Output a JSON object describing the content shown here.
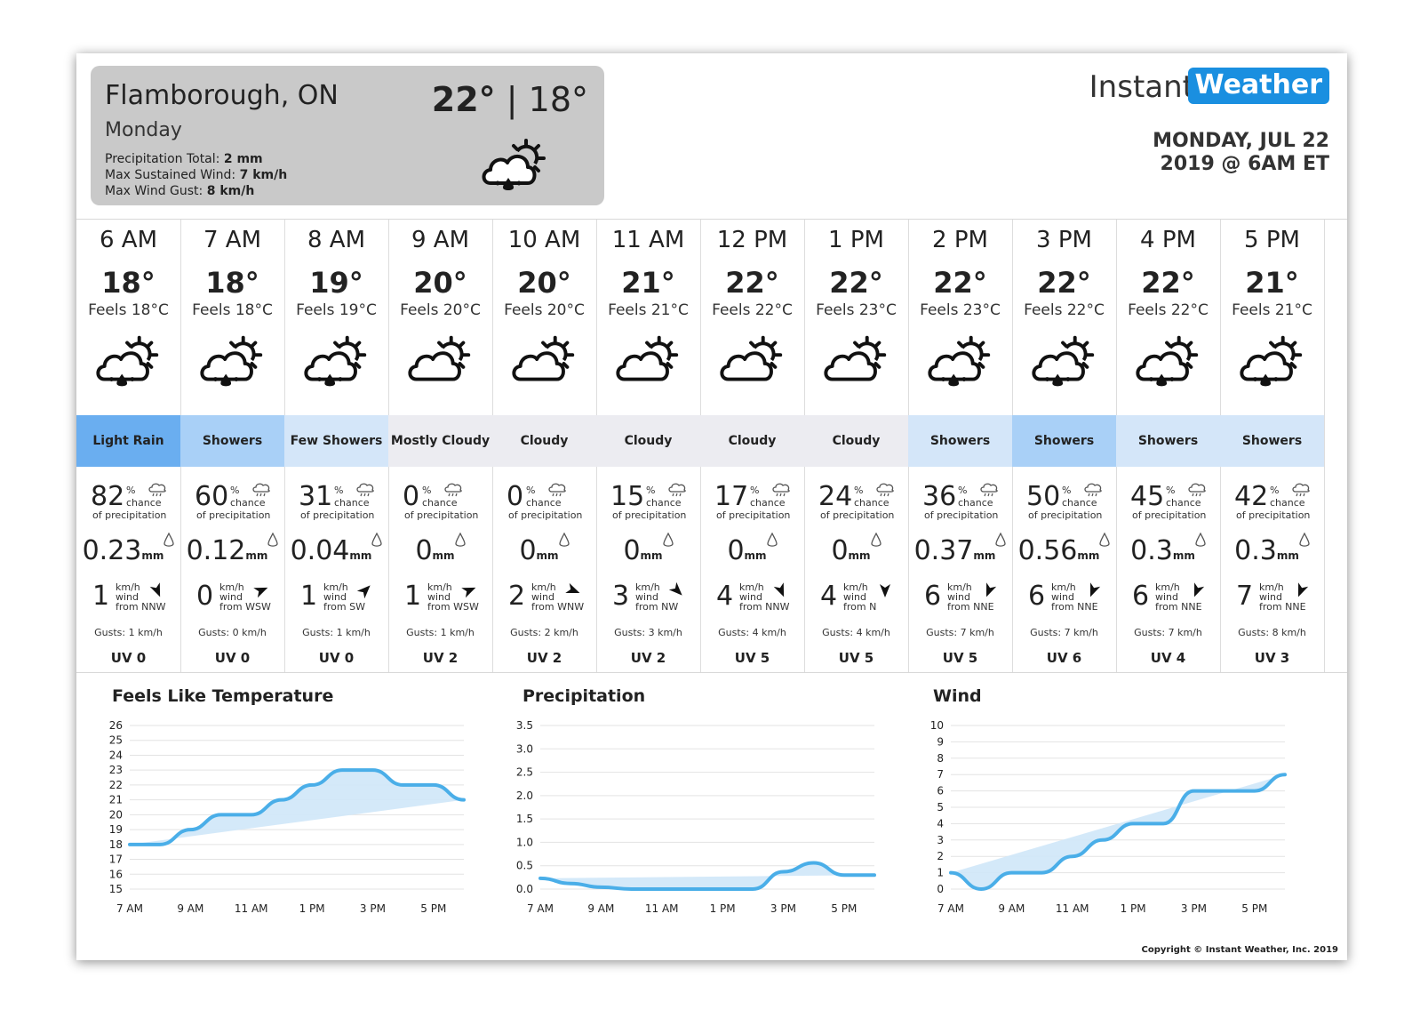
{
  "summary": {
    "city": "Flamborough, ON",
    "day": "Monday",
    "high": "22°",
    "separator": "|",
    "low": "18°",
    "precip_label": "Precipitation Total: ",
    "precip_value": "2 mm",
    "wind_label": "Max Sustained Wind: ",
    "wind_value": "7 km/h",
    "gust_label": "Max Wind Gust: ",
    "gust_value": "8 km/h",
    "icon": "rain-sun-icon"
  },
  "brand": {
    "part1": "Instant",
    "part2": "Weather",
    "accent": "#1a8fe0"
  },
  "issued": {
    "line1": "MONDAY, JUL 22",
    "line2": "2019 @ 6AM ET"
  },
  "labels": {
    "chance_pct": "%",
    "chance": "chance",
    "of_precip": "of precipitation",
    "mm": "mm",
    "kmh": "km/h",
    "wind": "wind",
    "from": "from"
  },
  "hours": [
    {
      "time": "6 AM",
      "temp": "18°",
      "feels": "Feels 18°C",
      "icon": "rain-sun-icon",
      "cond": "Light Rain",
      "cond_bg": "#6aaef0",
      "pop": "82",
      "mm": "0.23",
      "wind": "1",
      "dir": "NNW",
      "dir_deg": 337,
      "gust": "Gusts: 1 km/h",
      "uv": "UV 0"
    },
    {
      "time": "7 AM",
      "temp": "18°",
      "feels": "Feels 18°C",
      "icon": "rain-sun-icon",
      "cond": "Showers",
      "cond_bg": "#a9d0f7",
      "pop": "60",
      "mm": "0.12",
      "wind": "0",
      "dir": "WSW",
      "dir_deg": 247,
      "gust": "Gusts: 0 km/h",
      "uv": "UV 0"
    },
    {
      "time": "8 AM",
      "temp": "19°",
      "feels": "Feels 19°C",
      "icon": "rain-sun-icon",
      "cond": "Few Showers",
      "cond_bg": "#d4e6f9",
      "pop": "31",
      "mm": "0.04",
      "wind": "1",
      "dir": "SW",
      "dir_deg": 225,
      "gust": "Gusts: 1 km/h",
      "uv": "UV 0"
    },
    {
      "time": "9 AM",
      "temp": "20°",
      "feels": "Feels 20°C",
      "icon": "cloud-sun-icon",
      "cond": "Mostly Cloudy",
      "cond_bg": "#ececf1",
      "pop": "0",
      "mm": "0",
      "wind": "1",
      "dir": "WSW",
      "dir_deg": 247,
      "gust": "Gusts: 1 km/h",
      "uv": "UV 2"
    },
    {
      "time": "10 AM",
      "temp": "20°",
      "feels": "Feels 20°C",
      "icon": "cloud-sun-icon",
      "cond": "Cloudy",
      "cond_bg": "#ececf1",
      "pop": "0",
      "mm": "0",
      "wind": "2",
      "dir": "WNW",
      "dir_deg": 292,
      "gust": "Gusts: 2 km/h",
      "uv": "UV 2"
    },
    {
      "time": "11 AM",
      "temp": "21°",
      "feels": "Feels 21°C",
      "icon": "cloud-sun-icon",
      "cond": "Cloudy",
      "cond_bg": "#ececf1",
      "pop": "15",
      "mm": "0",
      "wind": "3",
      "dir": "NW",
      "dir_deg": 315,
      "gust": "Gusts: 3 km/h",
      "uv": "UV 2"
    },
    {
      "time": "12 PM",
      "temp": "22°",
      "feels": "Feels 22°C",
      "icon": "cloud-sun-icon",
      "cond": "Cloudy",
      "cond_bg": "#ececf1",
      "pop": "17",
      "mm": "0",
      "wind": "4",
      "dir": "NNW",
      "dir_deg": 337,
      "gust": "Gusts: 4 km/h",
      "uv": "UV 5"
    },
    {
      "time": "1 PM",
      "temp": "22°",
      "feels": "Feels 23°C",
      "icon": "cloud-sun-icon",
      "cond": "Cloudy",
      "cond_bg": "#ececf1",
      "pop": "24",
      "mm": "0",
      "wind": "4",
      "dir": "N",
      "dir_deg": 0,
      "gust": "Gusts: 4 km/h",
      "uv": "UV 5"
    },
    {
      "time": "2 PM",
      "temp": "22°",
      "feels": "Feels 23°C",
      "icon": "rain-sun-icon",
      "cond": "Showers",
      "cond_bg": "#d4e6f9",
      "pop": "36",
      "mm": "0.37",
      "wind": "6",
      "dir": "NNE",
      "dir_deg": 22,
      "gust": "Gusts: 7 km/h",
      "uv": "UV 5"
    },
    {
      "time": "3 PM",
      "temp": "22°",
      "feels": "Feels 22°C",
      "icon": "rain-sun-icon",
      "cond": "Showers",
      "cond_bg": "#a9d0f7",
      "pop": "50",
      "mm": "0.56",
      "wind": "6",
      "dir": "NNE",
      "dir_deg": 22,
      "gust": "Gusts: 7 km/h",
      "uv": "UV 6"
    },
    {
      "time": "4 PM",
      "temp": "22°",
      "feels": "Feels 22°C",
      "icon": "rain-sun-icon",
      "cond": "Showers",
      "cond_bg": "#d4e6f9",
      "pop": "45",
      "mm": "0.3",
      "wind": "6",
      "dir": "NNE",
      "dir_deg": 22,
      "gust": "Gusts: 7 km/h",
      "uv": "UV 4"
    },
    {
      "time": "5 PM",
      "temp": "21°",
      "feels": "Feels 21°C",
      "icon": "rain-sun-icon",
      "cond": "Showers",
      "cond_bg": "#d4e6f9",
      "pop": "42",
      "mm": "0.3",
      "wind": "7",
      "dir": "NNE",
      "dir_deg": 22,
      "gust": "Gusts: 8 km/h",
      "uv": "UV 3"
    }
  ],
  "chart_data": [
    {
      "type": "area",
      "title": "Feels Like Temperature",
      "x": [
        "7 AM",
        "8 AM",
        "9 AM",
        "10 AM",
        "11 AM",
        "12 PM",
        "1 PM",
        "2 PM",
        "3 PM",
        "4 PM",
        "5 PM",
        "6 PM"
      ],
      "x_ticks": [
        "7 AM",
        "9 AM",
        "11 AM",
        "1 PM",
        "3 PM",
        "5 PM"
      ],
      "values": [
        18,
        18,
        19,
        20,
        20,
        21,
        22,
        23,
        23,
        22,
        22,
        21
      ],
      "ylim": [
        15,
        26
      ],
      "y_ticks": [
        "15",
        "16",
        "17",
        "18",
        "19",
        "20",
        "21",
        "22",
        "23",
        "24",
        "25",
        "26"
      ],
      "grid": true,
      "color": "#4aaee8"
    },
    {
      "type": "area",
      "title": "Precipitation",
      "x": [
        "7 AM",
        "8 AM",
        "9 AM",
        "10 AM",
        "11 AM",
        "12 PM",
        "1 PM",
        "2 PM",
        "3 PM",
        "4 PM",
        "5 PM",
        "6 PM"
      ],
      "x_ticks": [
        "7 AM",
        "9 AM",
        "11 AM",
        "1 PM",
        "3 PM",
        "5 PM"
      ],
      "values": [
        0.23,
        0.12,
        0.04,
        0,
        0,
        0,
        0,
        0,
        0.37,
        0.56,
        0.3,
        0.3
      ],
      "ylim": [
        0,
        3.5
      ],
      "y_ticks": [
        "0.0",
        "0.5",
        "1.0",
        "1.5",
        "2.0",
        "2.5",
        "3.0",
        "3.5"
      ],
      "grid": true,
      "color": "#4aaee8"
    },
    {
      "type": "area",
      "title": "Wind",
      "x": [
        "7 AM",
        "8 AM",
        "9 AM",
        "10 AM",
        "11 AM",
        "12 PM",
        "1 PM",
        "2 PM",
        "3 PM",
        "4 PM",
        "5 PM",
        "6 PM"
      ],
      "x_ticks": [
        "7 AM",
        "9 AM",
        "11 AM",
        "1 PM",
        "3 PM",
        "5 PM"
      ],
      "values": [
        1,
        0,
        1,
        1,
        2,
        3,
        4,
        4,
        6,
        6,
        6,
        7
      ],
      "ylim": [
        0,
        10
      ],
      "y_ticks": [
        "0",
        "1",
        "2",
        "3",
        "4",
        "5",
        "6",
        "7",
        "8",
        "9",
        "10"
      ],
      "grid": true,
      "color": "#4aaee8"
    }
  ],
  "copyright": "Copyright © Instant Weather, Inc. 2019"
}
